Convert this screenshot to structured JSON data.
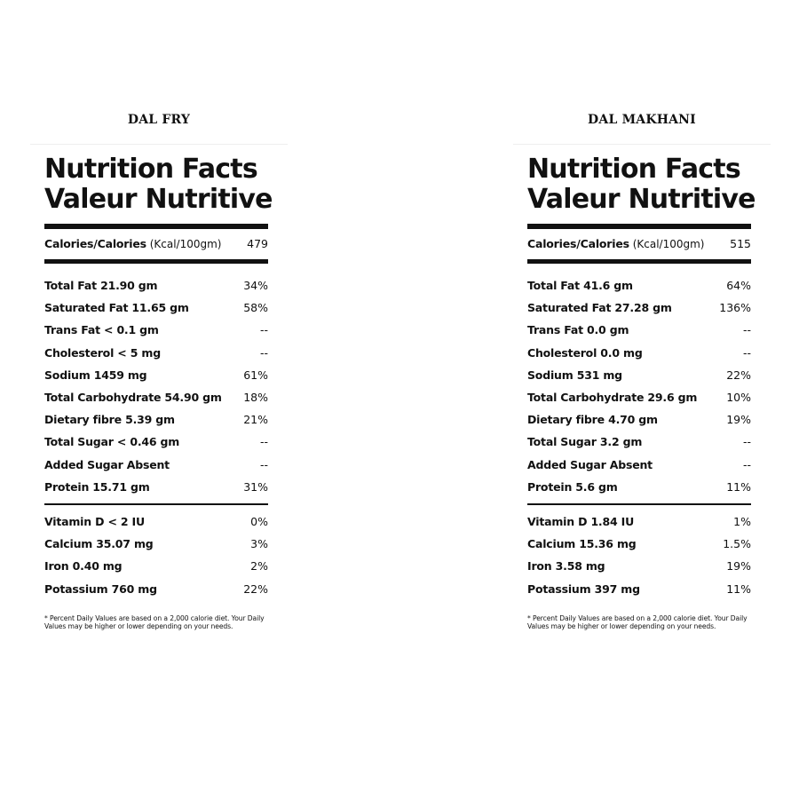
{
  "panels": [
    {
      "product": "DAL FRY",
      "heading_en": "Nutrition Facts",
      "heading_fr": "Valeur Nutritive",
      "calories": {
        "name": "Calories/Calories",
        "unit": "(Kcal/100gm)",
        "value": "479"
      },
      "nutrients": [
        {
          "name": "Total Fat 21.90 gm",
          "pct": "34%"
        },
        {
          "name": "Saturated Fat 11.65 gm",
          "pct": "58%"
        },
        {
          "name": "Trans Fat < 0.1 gm",
          "pct": "--"
        },
        {
          "name": "Cholesterol < 5 mg",
          "pct": "--"
        },
        {
          "name": "Sodium 1459 mg",
          "pct": "61%"
        },
        {
          "name": "Total Carbohydrate 54.90 gm",
          "pct": "18%"
        },
        {
          "name": "Dietary fibre 5.39 gm",
          "pct": "21%"
        },
        {
          "name": "Total Sugar < 0.46 gm",
          "pct": "--"
        },
        {
          "name": "Added Sugar Absent",
          "pct": "--"
        },
        {
          "name": "Protein 15.71 gm",
          "pct": "31%"
        }
      ],
      "vitamins": [
        {
          "name": "Vitamin D < 2 IU",
          "pct": "0%"
        },
        {
          "name": "Calcium 35.07 mg",
          "pct": "3%"
        },
        {
          "name": "Iron 0.40 mg",
          "pct": "2%"
        },
        {
          "name": "Potassium 760 mg",
          "pct": "22%"
        }
      ],
      "footnote": "* Percent Daily Values are based on a 2,000 calorie diet. Your Daily Values may be higher or lower depending on your needs."
    },
    {
      "product": "DAL MAKHANI",
      "heading_en": "Nutrition Facts",
      "heading_fr": "Valeur Nutritive",
      "calories": {
        "name": "Calories/Calories",
        "unit": "(Kcal/100gm)",
        "value": "515"
      },
      "nutrients": [
        {
          "name": "Total Fat 41.6 gm",
          "pct": "64%"
        },
        {
          "name": "Saturated Fat 27.28 gm",
          "pct": "136%"
        },
        {
          "name": "Trans Fat 0.0 gm",
          "pct": "--"
        },
        {
          "name": "Cholesterol 0.0 mg",
          "pct": "--"
        },
        {
          "name": "Sodium 531 mg",
          "pct": "22%"
        },
        {
          "name": "Total Carbohydrate 29.6 gm",
          "pct": "10%"
        },
        {
          "name": "Dietary fibre 4.70 gm",
          "pct": "19%"
        },
        {
          "name": "Total Sugar 3.2 gm",
          "pct": "--"
        },
        {
          "name": "Added Sugar Absent",
          "pct": "--"
        },
        {
          "name": "Protein 5.6 gm",
          "pct": "11%"
        }
      ],
      "vitamins": [
        {
          "name": "Vitamin D 1.84 IU",
          "pct": "1%"
        },
        {
          "name": "Calcium 15.36 mg",
          "pct": "1.5%"
        },
        {
          "name": "Iron 3.58 mg",
          "pct": "19%"
        },
        {
          "name": "Potassium 397 mg",
          "pct": "11%"
        }
      ],
      "footnote": "* Percent Daily Values are based on a 2,000 calorie diet. Your Daily Values may be higher or lower depending on your needs."
    }
  ]
}
